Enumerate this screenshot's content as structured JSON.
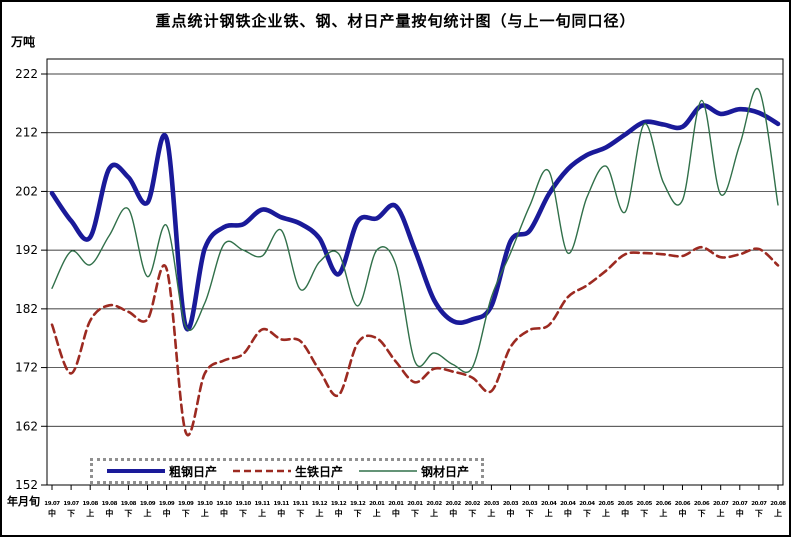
{
  "figure": {
    "title": "重点统计钢铁企业铁、钢、材日产量按旬统计图（与上一旬同口径）",
    "y_unit_label": "万吨",
    "x_axis_label": "年月旬"
  },
  "legend": [
    {
      "label": "粗钢日产",
      "color": "#1a1a99",
      "line": "thick-solid"
    },
    {
      "label": "生铁日产",
      "color": "#9c2a21",
      "line": "dashed"
    },
    {
      "label": "钢材日产",
      "color": "#31704a",
      "line": "thin-solid"
    }
  ],
  "chart_data": {
    "type": "line",
    "title": "重点统计钢铁企业铁、钢、材日产量按旬统计图（与上一旬同口径）",
    "xlabel": "年月旬",
    "ylabel": "万吨",
    "ylim": [
      152,
      222
    ],
    "yticks": [
      152,
      162,
      172,
      182,
      192,
      202,
      212,
      222
    ],
    "grid": true,
    "legend_position": "bottom-left-inside",
    "x_labels_year_month": [
      "19.07",
      "19.07",
      "19.08",
      "19.08",
      "19.08",
      "19.09",
      "19.09",
      "19.09",
      "19.10",
      "19.10",
      "19.10",
      "19.11",
      "19.11",
      "19.11",
      "19.12",
      "19.12",
      "19.12",
      "20.01",
      "20.01",
      "20.01",
      "20.02",
      "20.02",
      "20.02",
      "20.03",
      "20.03",
      "20.03",
      "20.04",
      "20.04",
      "20.04",
      "20.05",
      "20.05",
      "20.05",
      "20.06",
      "20.06",
      "20.06",
      "20.07",
      "20.07",
      "20.07",
      "20.08"
    ],
    "x_labels_period": [
      "中",
      "下",
      "上",
      "中",
      "下",
      "上",
      "中",
      "下",
      "上",
      "中",
      "下",
      "上",
      "中",
      "下",
      "上",
      "中",
      "下",
      "上",
      "中",
      "下",
      "上",
      "中",
      "下",
      "上",
      "中",
      "下",
      "上",
      "中",
      "下",
      "上",
      "中",
      "下",
      "上",
      "中",
      "下",
      "上",
      "中",
      "下",
      "上"
    ],
    "series": [
      {
        "name": "粗钢日产",
        "color": "#1a1a99",
        "line": "solid",
        "width": 4.6,
        "values": [
          201.7,
          197.0,
          194.2,
          205.9,
          204.4,
          200.1,
          211.0,
          179.0,
          192.3,
          195.9,
          196.4,
          198.9,
          197.6,
          196.5,
          194.0,
          187.9,
          196.9,
          197.4,
          199.5,
          192.0,
          183.5,
          179.9,
          180.2,
          182.5,
          193.5,
          195.3,
          201.5,
          205.8,
          208.2,
          209.5,
          211.7,
          213.8,
          213.4,
          213.0,
          216.6,
          215.2,
          216.0,
          215.4,
          213.5
        ]
      },
      {
        "name": "生铁日产",
        "color": "#9c2a21",
        "line": "dashed",
        "width": 2.6,
        "values": [
          179.3,
          171.0,
          180.0,
          182.6,
          181.5,
          180.2,
          188.8,
          161.0,
          171.0,
          173.2,
          174.3,
          178.5,
          176.8,
          176.5,
          171.5,
          167.3,
          176.2,
          177.0,
          173.0,
          169.5,
          171.8,
          171.3,
          170.3,
          168.0,
          175.5,
          178.4,
          179.2,
          184.0,
          186.0,
          188.5,
          191.3,
          191.5,
          191.3,
          191.0,
          192.5,
          190.8,
          191.3,
          192.2,
          189.4
        ]
      },
      {
        "name": "钢材日产",
        "color": "#31704a",
        "line": "solid",
        "width": 1.4,
        "values": [
          185.5,
          191.8,
          189.5,
          194.5,
          199.0,
          187.5,
          196.2,
          179.0,
          183.0,
          193.0,
          192.0,
          191.0,
          195.4,
          185.3,
          190.0,
          191.4,
          182.5,
          192.0,
          189.5,
          173.0,
          174.5,
          172.5,
          172.0,
          184.0,
          191.5,
          199.5,
          205.5,
          191.5,
          201.0,
          206.3,
          198.5,
          213.5,
          203.5,
          200.5,
          217.5,
          201.5,
          210.0,
          219.3,
          199.7
        ]
      }
    ]
  }
}
